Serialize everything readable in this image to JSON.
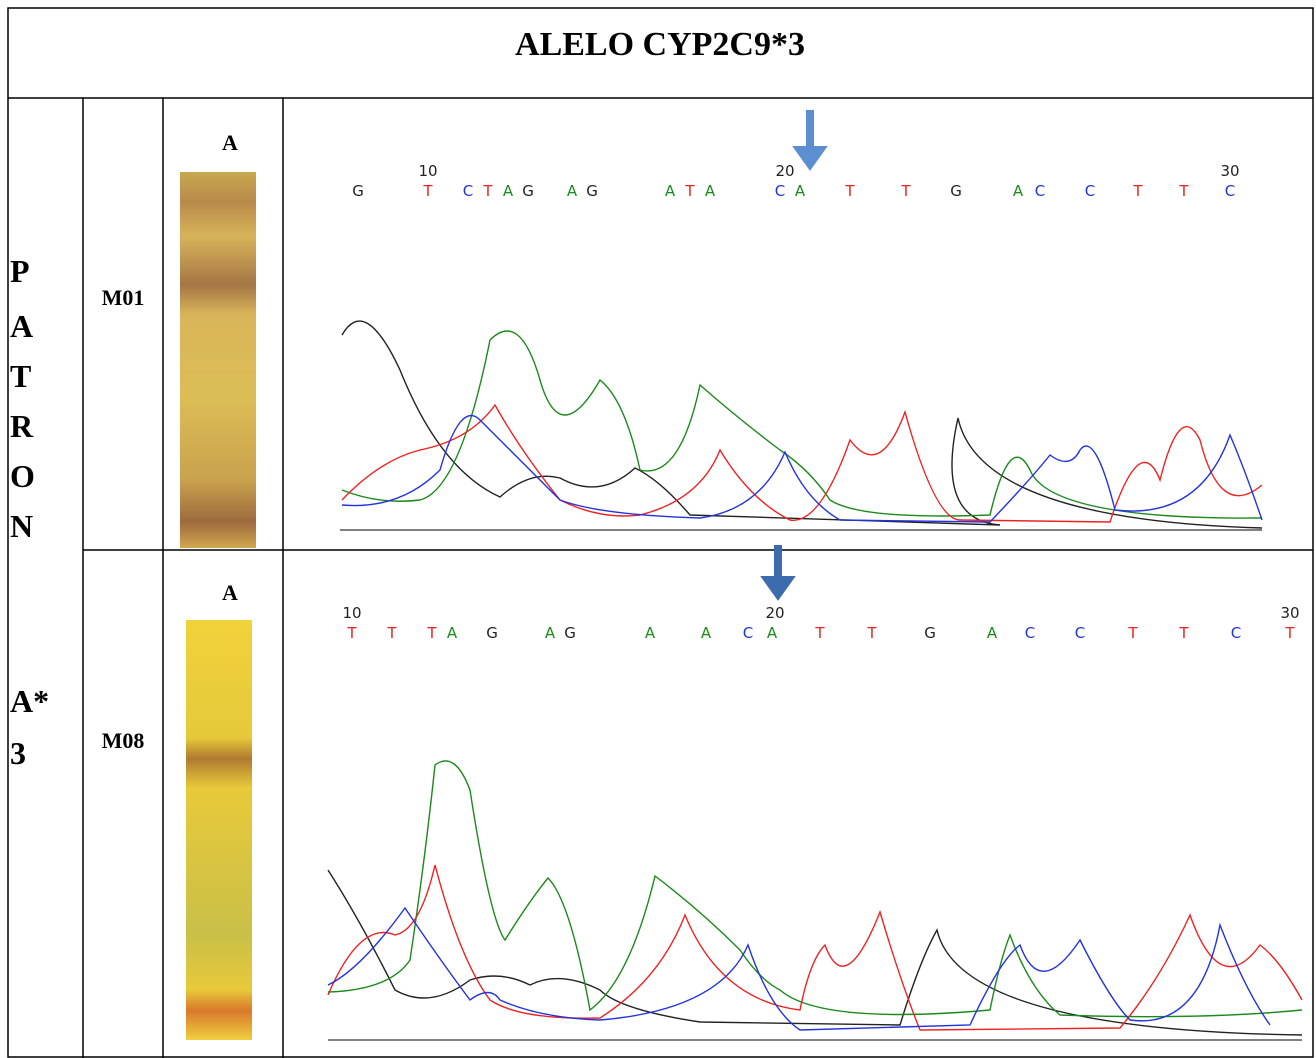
{
  "title": "ALELO CYP2C9*3",
  "pattern_label": [
    "P",
    "A",
    "T",
    "R",
    "O",
    "N",
    "A*",
    "3"
  ],
  "base_colors": {
    "A": "#1a8a1a",
    "C": "#2233dd",
    "G": "#222222",
    "T": "#ee2222"
  },
  "samples": [
    {
      "name": "M01",
      "lane_label": "A",
      "sequence": [
        "G",
        "T",
        "C",
        "T",
        "A",
        "G",
        "A",
        "G",
        "A",
        "T",
        "A",
        "C",
        "A",
        "T",
        "T",
        "G",
        "A",
        "C",
        "C",
        "T",
        "T",
        "C"
      ],
      "positions": [
        10,
        20,
        30
      ]
    },
    {
      "name": "M08",
      "lane_label": "A",
      "sequence": [
        "T",
        "T",
        "T",
        "A",
        "G",
        "A",
        "G",
        "A",
        "A",
        "C",
        "A",
        "T",
        "T",
        "G",
        "A",
        "C",
        "C",
        "T",
        "T",
        "C",
        "T"
      ],
      "positions": [
        10,
        20,
        30
      ]
    }
  ]
}
